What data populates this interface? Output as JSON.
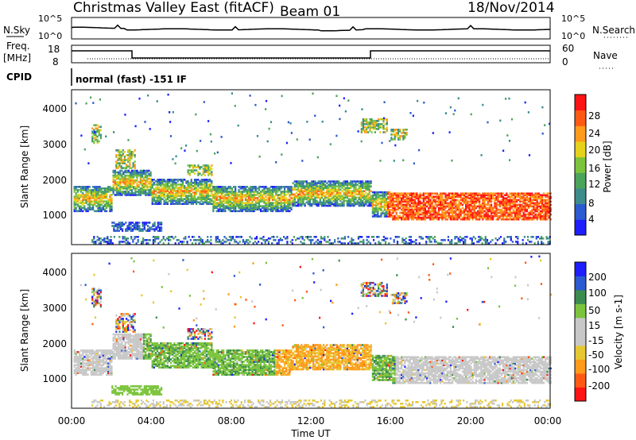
{
  "header": {
    "title": "Christmas Valley East (fitACF)",
    "beam": "Beam 01",
    "date": "18/Nov/2014"
  },
  "status_panels": {
    "nsky_label": "N.Sky",
    "nsearch_label": "N.Search",
    "freq_label_line1": "Freq.",
    "freq_label_line2": "[MHz]",
    "nave_label": "Nave",
    "cpid_label": "CPID",
    "cpid_value": "normal (fast) -151 IF",
    "noise_left_ticks": [
      "10^5",
      "10^0"
    ],
    "noise_right_ticks": [
      "10^5",
      "10^0"
    ],
    "freq_left_ticks": [
      "18",
      "8"
    ],
    "freq_right_ticks": [
      "60",
      "0"
    ]
  },
  "colors": {
    "power_scale": [
      "#1e1eff",
      "#2c5ad0",
      "#3c8c8c",
      "#4aa45a",
      "#7cc43c",
      "#e6d21a",
      "#ff9a1a",
      "#ff5a14",
      "#ff1414"
    ],
    "velocity_scale": [
      "#ff1414",
      "#ff5a14",
      "#ff9a1a",
      "#e6c832",
      "#c8c8c8",
      "#c8c8c8",
      "#7cc43c",
      "#3c8c50",
      "#2c5ad0",
      "#1e1eff"
    ],
    "ground_scatter": "#c8c8c8"
  },
  "chart_data": [
    {
      "type": "heatmap",
      "panel": "power",
      "ylabel": "Slant Range [km]",
      "y_ticks": [
        "1000",
        "2000",
        "3000",
        "4000"
      ],
      "ylim": [
        180,
        4500
      ],
      "xlim_hours": [
        0,
        24
      ],
      "colorbar_label": "Power [dB]",
      "colorbar_ticks": [
        "4",
        "8",
        "12",
        "16",
        "20",
        "24",
        "28"
      ],
      "colorbar_range": [
        0,
        32
      ]
    },
    {
      "type": "heatmap",
      "panel": "velocity",
      "ylabel": "Slant Range [km]",
      "y_ticks": [
        "1000",
        "2000",
        "3000",
        "4000"
      ],
      "ylim": [
        180,
        4500
      ],
      "xlim_hours": [
        0,
        24
      ],
      "colorbar_label": "Velocity [m s-1]",
      "colorbar_ticks": [
        "-200",
        "-100",
        "-50",
        "-15",
        "15",
        "50",
        "100",
        "200"
      ]
    }
  ],
  "x_axis": {
    "label": "Time UT",
    "ticks": [
      "00:00",
      "04:00",
      "08:00",
      "12:00",
      "16:00",
      "20:00",
      "00:00"
    ]
  }
}
